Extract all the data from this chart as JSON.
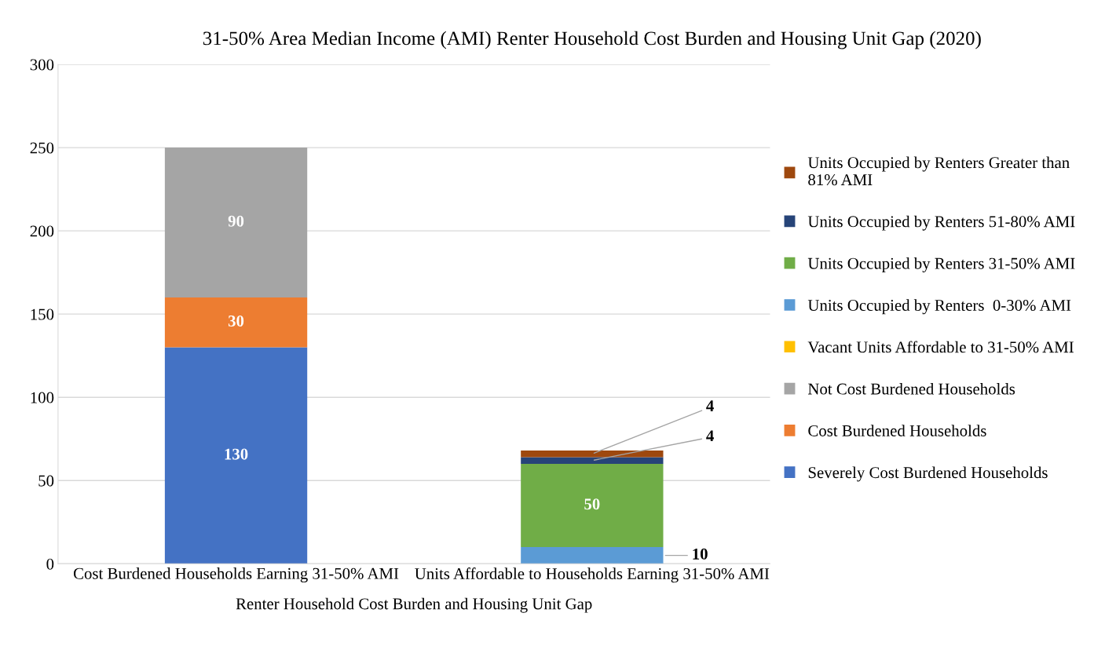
{
  "chart_data": {
    "type": "bar",
    "stacked": true,
    "title": "31-50% Area Median Income (AMI) Renter Household Cost Burden and Housing Unit Gap (2020)",
    "xlabel": "Renter Household Cost Burden and Housing Unit Gap",
    "categories": [
      "Cost Burdened Households Earning 31-50% AMI",
      "Units Affordable to Households Earning 31-50% AMI"
    ],
    "series": [
      {
        "name": "Severely Cost Burdened Households",
        "color": "#4472c4",
        "values": [
          130,
          null
        ],
        "value_labels": [
          "130",
          null
        ]
      },
      {
        "name": "Cost Burdened Households",
        "color": "#ed7d31",
        "values": [
          30,
          null
        ],
        "value_labels": [
          "30",
          null
        ]
      },
      {
        "name": "Not Cost Burdened Households",
        "color": "#a5a5a5",
        "values": [
          90,
          null
        ],
        "value_labels": [
          "90",
          null
        ]
      },
      {
        "name": "Vacant Units Affordable to 31-50% AMI",
        "color": "#ffc000",
        "values": [
          null,
          null
        ],
        "value_labels": [
          null,
          null
        ]
      },
      {
        "name": "Units Occupied by Renters  0-30% AMI",
        "color": "#5b9bd5",
        "values": [
          null,
          10
        ],
        "value_labels": [
          null,
          "10"
        ]
      },
      {
        "name": "Units Occupied by Renters 31-50% AMI",
        "color": "#70ad47",
        "values": [
          null,
          50
        ],
        "value_labels": [
          null,
          "50"
        ]
      },
      {
        "name": "Units Occupied by Renters 51-80% AMI",
        "color": "#264478",
        "values": [
          null,
          4
        ],
        "value_labels": [
          null,
          "4"
        ]
      },
      {
        "name": "Units Occupied by Renters Greater than 81% AMI",
        "color": "#9e480e",
        "values": [
          null,
          4
        ],
        "value_labels": [
          null,
          "4"
        ]
      }
    ],
    "ylim": [
      0,
      300
    ],
    "yticks": [
      0,
      50,
      100,
      150,
      200,
      250,
      300
    ],
    "grid": "y",
    "legend": "right"
  }
}
